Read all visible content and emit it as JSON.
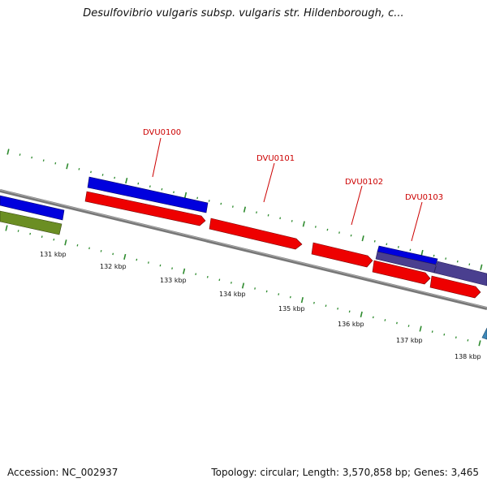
{
  "title": "Desulfovibrio vulgaris subsp. vulgaris str. Hildenborough, c...",
  "footer": {
    "accession": "Accession: NC_002937",
    "summary": "Topology: circular; Length: 3,570,858 bp; Genes: 3,465"
  },
  "colors": {
    "backbone": "#777777",
    "tick": "#2e8b2e",
    "gene_red": "#ee0000",
    "gene_blue": "#0000dd",
    "gene_purple": "#4a3f8f",
    "gene_olive": "#6b8e23",
    "gene_teal": "#3f88b8",
    "label": "#cc0000"
  },
  "map": {
    "scale_unit": "kbp",
    "tick_labels": [
      "131 kbp",
      "132 kbp",
      "133 kbp",
      "134 kbp",
      "135 kbp",
      "136 kbp",
      "137 kbp",
      "138 kbp"
    ],
    "gene_labels": [
      "DVU0100",
      "DVU0101",
      "DVU0102",
      "DVU0103"
    ]
  }
}
